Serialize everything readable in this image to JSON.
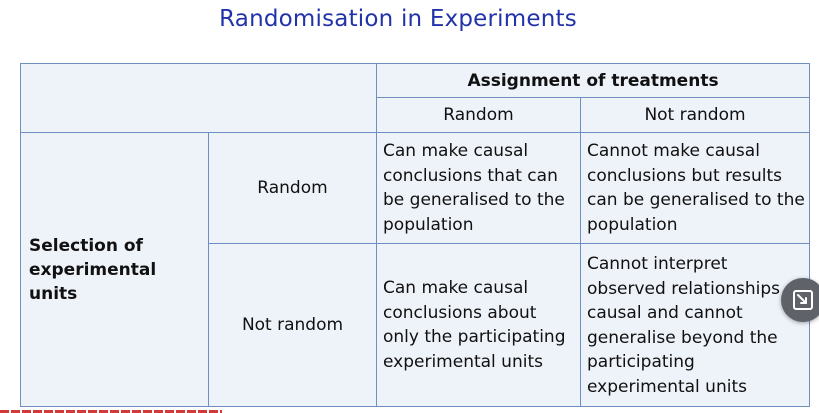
{
  "slide": {
    "title": "Randomisation in Experiments"
  },
  "table": {
    "column_group_header": "Assignment of treatments",
    "column_headers": [
      "Random",
      "Not random"
    ],
    "row_group_header": "Selection of experimental units",
    "rows": [
      {
        "label": "Random",
        "cells": [
          "Can make causal conclusions that can be generalised to the population",
          "Cannot make causal conclusions but results can be generalised to the population"
        ]
      },
      {
        "label": "Not random",
        "cells": [
          "Can make causal conclusions about only the participating experimental units",
          "Cannot interpret observed relationships as causal and cannot generalise beyond the participating experimental units"
        ]
      }
    ]
  },
  "overlay": {
    "button_icon": "minimize-arrow-icon"
  },
  "colors": {
    "title": "#2233aa",
    "border": "#6f8fc0",
    "cell_background": "#eef2f9",
    "progress_bar": "#d23a3a"
  }
}
